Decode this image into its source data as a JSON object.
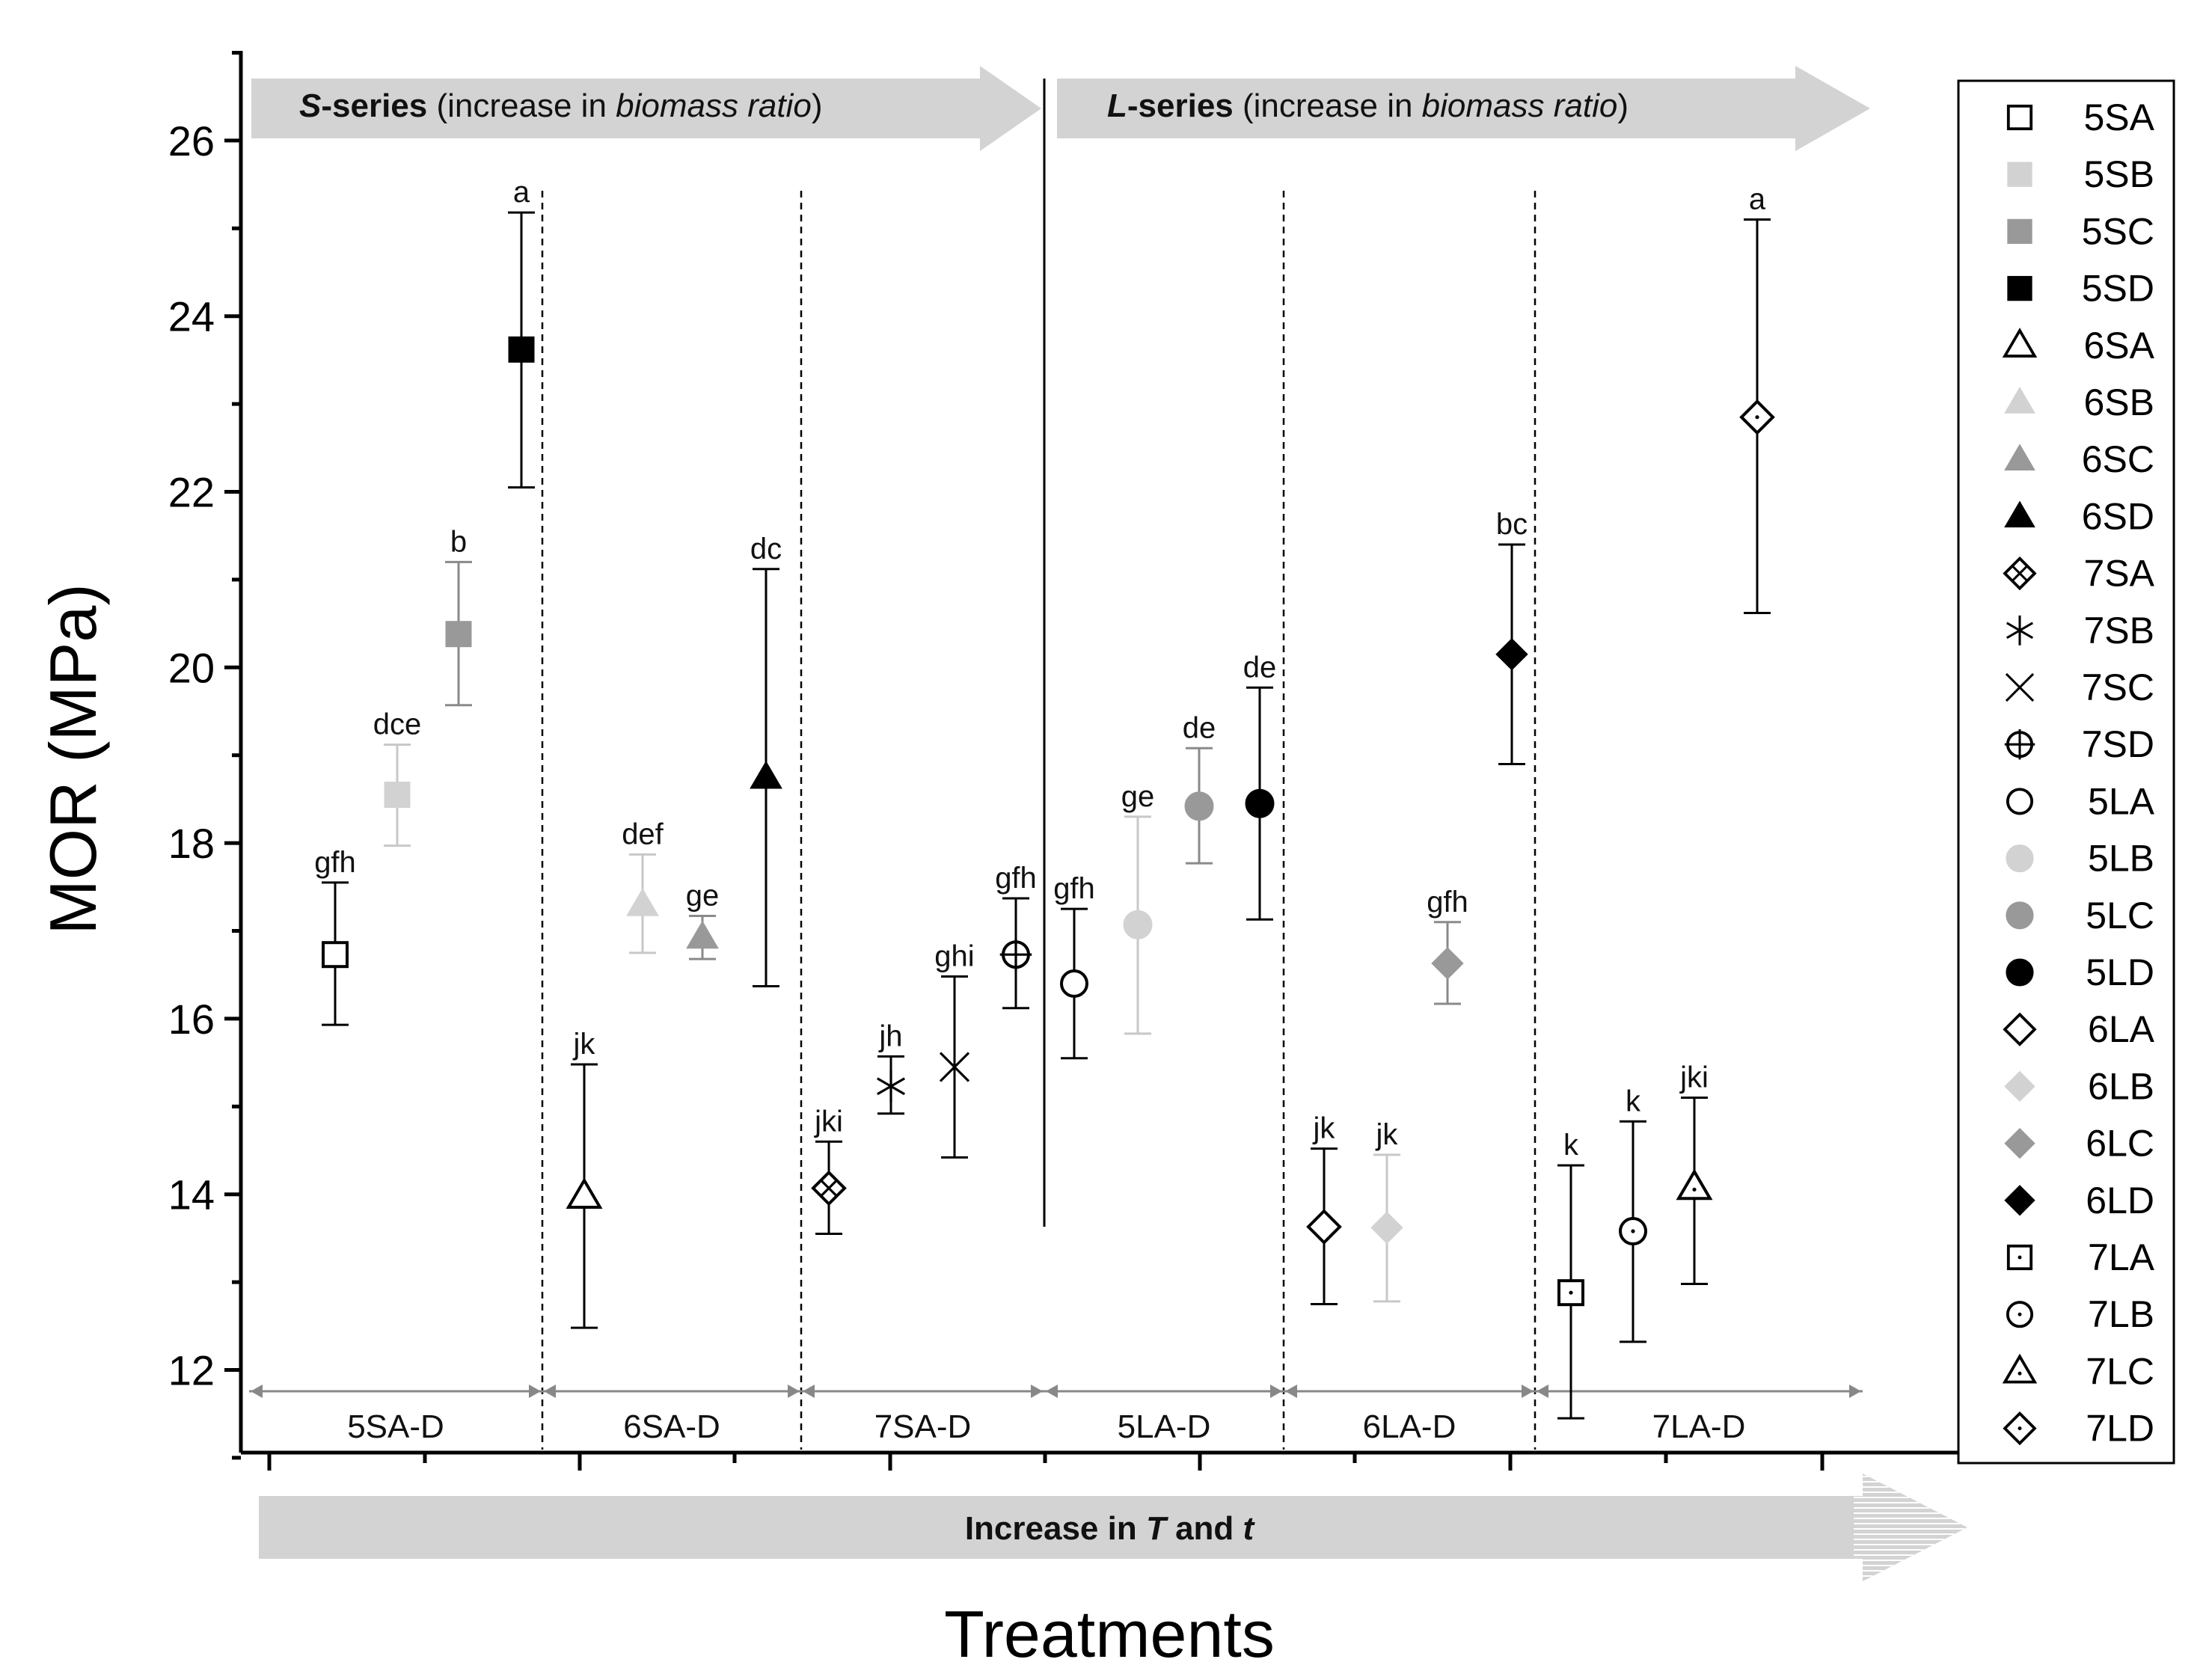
{
  "chart_data": {
    "type": "scatter",
    "ylabel": "MOR (MPa)",
    "xlabel": "Treatments",
    "ylim": [
      11,
      27
    ],
    "yticks": [
      12,
      14,
      16,
      18,
      20,
      22,
      24,
      26
    ],
    "grid": false,
    "legend_position": "right",
    "banner_s": {
      "bold": "S",
      "bold_rest": "-series",
      "text": " (increase in ",
      "italic": "biomass ratio",
      "close": ")"
    },
    "banner_l": {
      "bold": "L",
      "bold_rest": "-series",
      "text": " (increase in ",
      "italic": "biomass ratio",
      "close": ")"
    },
    "bottom_arrow": {
      "pre": "Increase in ",
      "t1": "T",
      "mid": " and ",
      "t2": "t"
    },
    "groups": [
      "5SA-D",
      "6SA-D",
      "7SA-D",
      "5LA-D",
      "6LA-D",
      "7LA-D"
    ],
    "points": [
      {
        "label": "5SA",
        "x": 1,
        "y": 16.73,
        "lo": 15.93,
        "hi": 17.55,
        "letter": "gfh",
        "marker": "square-open",
        "color": "#000000"
      },
      {
        "label": "5SB",
        "x": 2,
        "y": 18.55,
        "lo": 17.97,
        "hi": 19.12,
        "letter": "dce",
        "marker": "square",
        "color": "#d2d2d2"
      },
      {
        "label": "5SC",
        "x": 3,
        "y": 20.38,
        "lo": 19.57,
        "hi": 21.2,
        "letter": "b",
        "marker": "square",
        "color": "#999999"
      },
      {
        "label": "5SD",
        "x": 4,
        "y": 23.62,
        "lo": 22.05,
        "hi": 25.18,
        "letter": "a",
        "marker": "square",
        "color": "#000000"
      },
      {
        "label": "6SA",
        "x": 5,
        "y": 13.98,
        "lo": 12.48,
        "hi": 15.48,
        "letter": "jk",
        "marker": "triangle-open",
        "color": "#000000"
      },
      {
        "label": "6SB",
        "x": 6,
        "y": 17.3,
        "lo": 16.75,
        "hi": 17.87,
        "letter": "def",
        "marker": "triangle",
        "color": "#d2d2d2"
      },
      {
        "label": "6SC",
        "x": 7,
        "y": 16.93,
        "lo": 16.68,
        "hi": 17.17,
        "letter": "ge",
        "marker": "triangle",
        "color": "#999999"
      },
      {
        "label": "6SD",
        "x": 8,
        "y": 18.75,
        "lo": 16.37,
        "hi": 21.12,
        "letter": "dc",
        "marker": "triangle",
        "color": "#000000"
      },
      {
        "label": "7SA",
        "x": 9,
        "y": 14.07,
        "lo": 13.55,
        "hi": 14.6,
        "letter": "jki",
        "marker": "crossed-diamond",
        "color": "#000000"
      },
      {
        "label": "7SB",
        "x": 10,
        "y": 15.23,
        "lo": 14.92,
        "hi": 15.57,
        "letter": "jh",
        "marker": "asterisk",
        "color": "#000000"
      },
      {
        "label": "7SC",
        "x": 11,
        "y": 15.45,
        "lo": 14.42,
        "hi": 16.48,
        "letter": "ghi",
        "marker": "cross",
        "color": "#000000"
      },
      {
        "label": "7SD",
        "x": 12,
        "y": 16.73,
        "lo": 16.12,
        "hi": 17.37,
        "letter": "gfh",
        "marker": "circle-plus",
        "color": "#000000"
      },
      {
        "label": "5LA",
        "x": 13,
        "y": 16.4,
        "lo": 15.55,
        "hi": 17.25,
        "letter": "gfh",
        "marker": "circle-open",
        "color": "#000000"
      },
      {
        "label": "5LB",
        "x": 14,
        "y": 17.07,
        "lo": 15.83,
        "hi": 18.3,
        "letter": "ge",
        "marker": "circle",
        "color": "#d2d2d2"
      },
      {
        "label": "5LC",
        "x": 15,
        "y": 18.42,
        "lo": 17.77,
        "hi": 19.08,
        "letter": "de",
        "marker": "circle",
        "color": "#999999"
      },
      {
        "label": "5LD",
        "x": 16,
        "y": 18.45,
        "lo": 17.13,
        "hi": 19.77,
        "letter": "de",
        "marker": "circle",
        "color": "#000000"
      },
      {
        "label": "6LA",
        "x": 17,
        "y": 13.63,
        "lo": 12.75,
        "hi": 14.52,
        "letter": "jk",
        "marker": "diamond-open",
        "color": "#000000"
      },
      {
        "label": "6LB",
        "x": 18,
        "y": 13.62,
        "lo": 12.78,
        "hi": 14.45,
        "letter": "jk",
        "marker": "diamond",
        "color": "#d2d2d2"
      },
      {
        "label": "6LC",
        "x": 19,
        "y": 16.63,
        "lo": 16.17,
        "hi": 17.1,
        "letter": "gfh",
        "marker": "diamond",
        "color": "#999999"
      },
      {
        "label": "6LD",
        "x": 20,
        "y": 20.15,
        "lo": 18.9,
        "hi": 21.4,
        "letter": "bc",
        "marker": "diamond",
        "color": "#000000"
      },
      {
        "label": "7LA",
        "x": 21,
        "y": 12.88,
        "lo": 11.45,
        "hi": 14.33,
        "letter": "k",
        "marker": "square-dot",
        "color": "#000000"
      },
      {
        "label": "7LB",
        "x": 22,
        "y": 13.58,
        "lo": 12.32,
        "hi": 14.83,
        "letter": "k",
        "marker": "circle-dot",
        "color": "#000000"
      },
      {
        "label": "7LC",
        "x": 23,
        "y": 14.08,
        "lo": 12.98,
        "hi": 15.1,
        "letter": "jki",
        "marker": "triangle-dot",
        "color": "#000000"
      },
      {
        "label": "7LD",
        "x": 24,
        "y": 22.85,
        "lo": 20.62,
        "hi": 25.1,
        "letter": "a",
        "marker": "diamond-dot",
        "color": "#000000"
      }
    ]
  }
}
